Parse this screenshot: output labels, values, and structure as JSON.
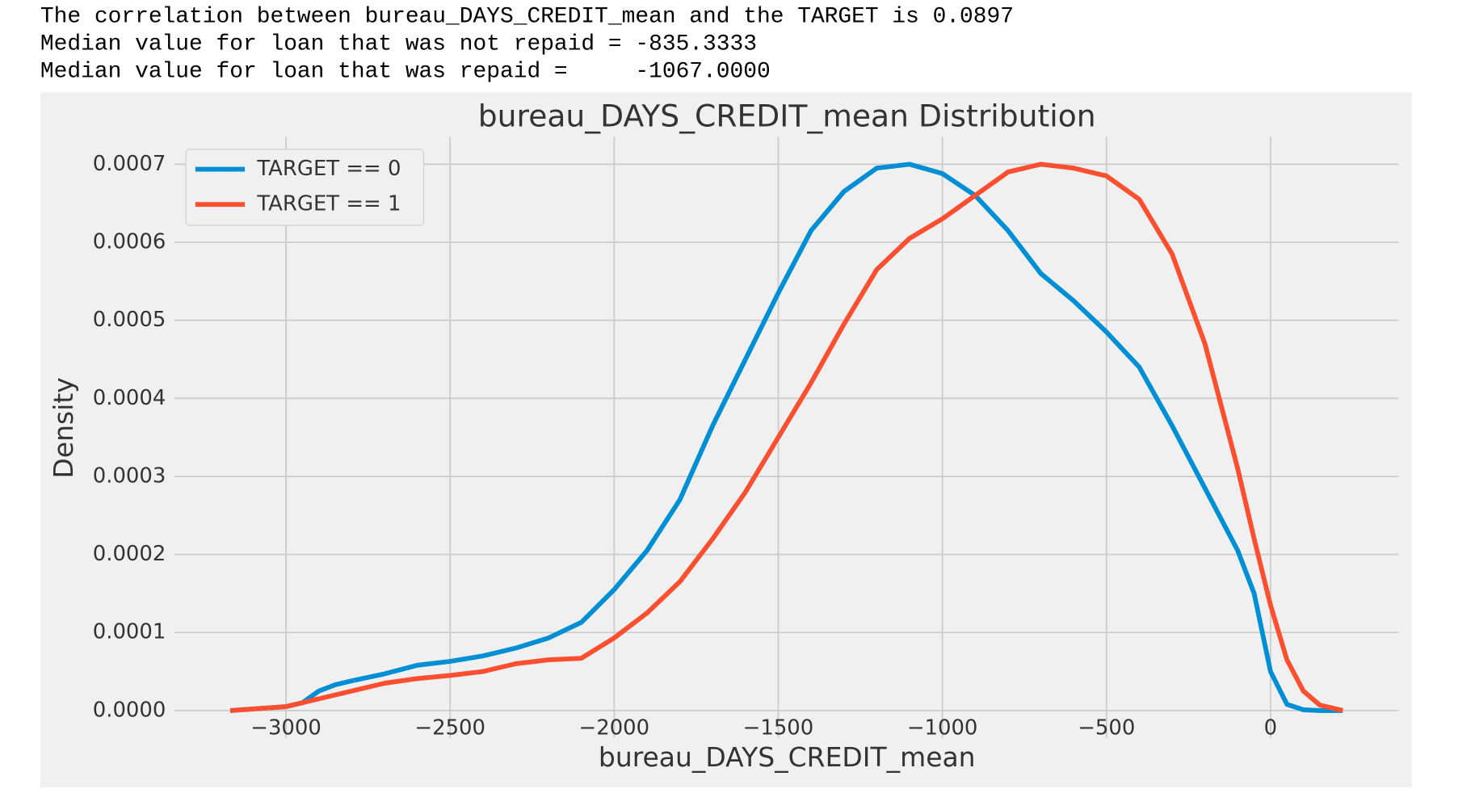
{
  "output_lines": [
    "The correlation between bureau_DAYS_CREDIT_mean and the TARGET is 0.0897",
    "Median value for loan that was not repaid = -835.3333",
    "Median value for loan that was repaid =     -1067.0000"
  ],
  "chart_data": {
    "type": "line",
    "title": "bureau_DAYS_CREDIT_mean Distribution",
    "xlabel": "bureau_DAYS_CREDIT_mean",
    "ylabel": "Density",
    "x": [
      -3170,
      -3000,
      -2950,
      -2900,
      -2850,
      -2800,
      -2700,
      -2600,
      -2500,
      -2400,
      -2300,
      -2200,
      -2100,
      -2000,
      -1900,
      -1800,
      -1700,
      -1600,
      -1500,
      -1400,
      -1300,
      -1200,
      -1100,
      -1000,
      -900,
      -800,
      -700,
      -600,
      -500,
      -400,
      -300,
      -200,
      -100,
      -50,
      0,
      50,
      100,
      150,
      220
    ],
    "series": [
      {
        "name": "TARGET == 0",
        "color": "#008fd5",
        "values": [
          0,
          5e-06,
          1e-05,
          2.5e-05,
          3.3e-05,
          3.8e-05,
          4.7e-05,
          5.8e-05,
          6.3e-05,
          7e-05,
          8e-05,
          9.3e-05,
          0.000113,
          0.000155,
          0.000205,
          0.00027,
          0.000365,
          0.00045,
          0.000535,
          0.000615,
          0.000665,
          0.000695,
          0.0007,
          0.000688,
          0.00066,
          0.000615,
          0.00056,
          0.000525,
          0.000485,
          0.00044,
          0.000365,
          0.000285,
          0.000205,
          0.00015,
          5e-05,
          8e-06,
          1e-06,
          0,
          0
        ]
      },
      {
        "name": "TARGET == 1",
        "color": "#fc4f30",
        "values": [
          0,
          5e-06,
          1e-05,
          1.5e-05,
          2e-05,
          2.5e-05,
          3.5e-05,
          4.1e-05,
          4.5e-05,
          5e-05,
          6e-05,
          6.5e-05,
          6.7e-05,
          9.3e-05,
          0.000125,
          0.000165,
          0.00022,
          0.00028,
          0.00035,
          0.00042,
          0.000495,
          0.000565,
          0.000605,
          0.00063,
          0.00066,
          0.00069,
          0.0007,
          0.000695,
          0.000685,
          0.000655,
          0.000585,
          0.00047,
          0.00031,
          0.00022,
          0.000135,
          6.5e-05,
          2.5e-05,
          7e-06,
          0
        ]
      }
    ],
    "xlim": [
      -3340,
      390
    ],
    "ylim": [
      -3.5e-05,
      0.000735
    ],
    "xticks": [
      {
        "value": -3000,
        "label": "−3000"
      },
      {
        "value": -2500,
        "label": "−2500"
      },
      {
        "value": -2000,
        "label": "−2000"
      },
      {
        "value": -1500,
        "label": "−1500"
      },
      {
        "value": -1000,
        "label": "−1000"
      },
      {
        "value": -500,
        "label": "−500"
      },
      0
    ],
    "yticks": [
      {
        "value": 0,
        "label": "0.0000"
      },
      {
        "value": 0.0001,
        "label": "0.0001"
      },
      {
        "value": 0.0002,
        "label": "0.0002"
      },
      {
        "value": 0.0003,
        "label": "0.0003"
      },
      {
        "value": 0.0004,
        "label": "0.0004"
      },
      {
        "value": 0.0005,
        "label": "0.0005"
      },
      {
        "value": 0.0006,
        "label": "0.0006"
      },
      {
        "value": 0.0007,
        "label": "0.0007"
      }
    ],
    "grid": true,
    "legend": "upper left"
  }
}
